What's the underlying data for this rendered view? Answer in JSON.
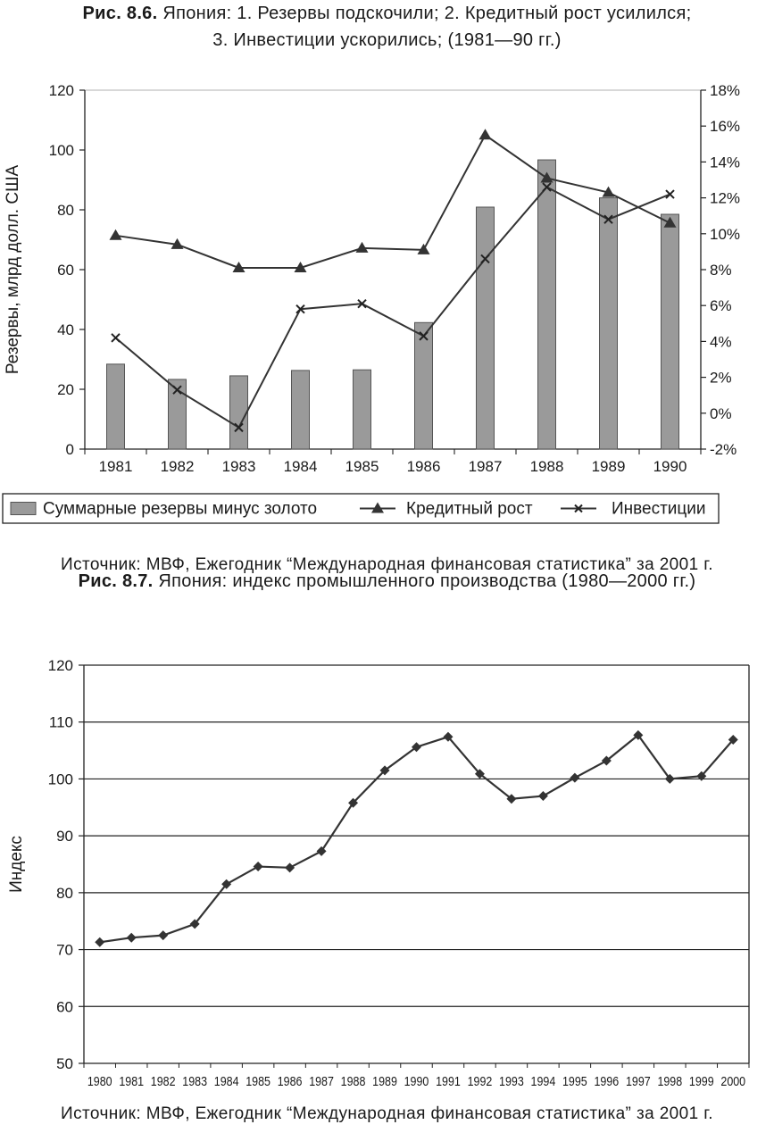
{
  "fig1": {
    "caption_label": "Рис. 8.6.",
    "caption_line1": "Япония: 1. Резервы подскочили; 2. Кредитный рост усилился;",
    "caption_line2": "3. Инвестиции ускорились; (1981—90 гг.)",
    "source": "Источник: МВФ, Ежегодник “Международная финансовая статистика” за 2001 г."
  },
  "fig2": {
    "caption_label": "Рис. 8.7.",
    "caption_text": "Япония: индекс промышленного производства (1980—2000 гг.)",
    "source": "Источник: МВФ, Ежегодник “Международная финансовая статистика” за 2001 г."
  },
  "chart_data": [
    {
      "type": "bar+line",
      "title": "Рис. 8.6. Япония: 1. Резервы подскочили; 2. Кредитный рост усилился; 3. Инвестиции ускорились; (1981—90 гг.)",
      "categories": [
        "1981",
        "1982",
        "1983",
        "1984",
        "1985",
        "1986",
        "1987",
        "1988",
        "1989",
        "1990"
      ],
      "ylabel": "Резервы, млрд долл. США",
      "ylim": [
        0,
        120
      ],
      "yticks": [
        "0",
        "20",
        "40",
        "60",
        "80",
        "100",
        "120"
      ],
      "y2lim": [
        -2,
        18
      ],
      "y2ticks": [
        "-2%",
        "0%",
        "2%",
        "4%",
        "6%",
        "8%",
        "10%",
        "12%",
        "14%",
        "16%",
        "18%"
      ],
      "grid": false,
      "legend_position": "bottom",
      "series": [
        {
          "name": "Суммарные резервы минус золото",
          "type": "bar",
          "axis": "left",
          "color": "#9a9a9a",
          "values": [
            28.4,
            23.3,
            24.5,
            26.3,
            26.5,
            42.3,
            80.9,
            96.7,
            84.0,
            78.5
          ]
        },
        {
          "name": "Кредитный рост",
          "type": "line",
          "axis": "right",
          "marker": "triangle",
          "color": "#333333",
          "values": [
            9.9,
            9.4,
            8.1,
            8.1,
            9.2,
            9.1,
            15.5,
            13.1,
            12.3,
            10.6
          ]
        },
        {
          "name": "Инвестиции",
          "type": "line",
          "axis": "right",
          "marker": "x",
          "color": "#333333",
          "values": [
            4.2,
            1.3,
            -0.8,
            5.8,
            6.1,
            4.3,
            8.6,
            12.6,
            10.8,
            12.2
          ]
        }
      ]
    },
    {
      "type": "line",
      "title": "Рис. 8.7. Япония: индекс промышленного производства (1980—2000 гг.)",
      "categories": [
        "1980",
        "1981",
        "1982",
        "1983",
        "1984",
        "1985",
        "1986",
        "1987",
        "1988",
        "1989",
        "1990",
        "1991",
        "1992",
        "1993",
        "1994",
        "1995",
        "1996",
        "1997",
        "1998",
        "1999",
        "2000"
      ],
      "ylabel": "Индекс",
      "ylim": [
        50,
        120
      ],
      "yticks": [
        "50",
        "60",
        "70",
        "80",
        "90",
        "100",
        "110",
        "120"
      ],
      "grid": true,
      "series": [
        {
          "name": "",
          "marker": "diamond",
          "color": "#333333",
          "values": [
            71.3,
            72.1,
            72.5,
            74.5,
            81.5,
            84.6,
            84.4,
            87.3,
            95.8,
            101.5,
            105.6,
            107.4,
            100.9,
            96.5,
            97.0,
            100.2,
            103.2,
            107.7,
            100.0,
            100.5,
            106.9
          ]
        }
      ]
    }
  ]
}
